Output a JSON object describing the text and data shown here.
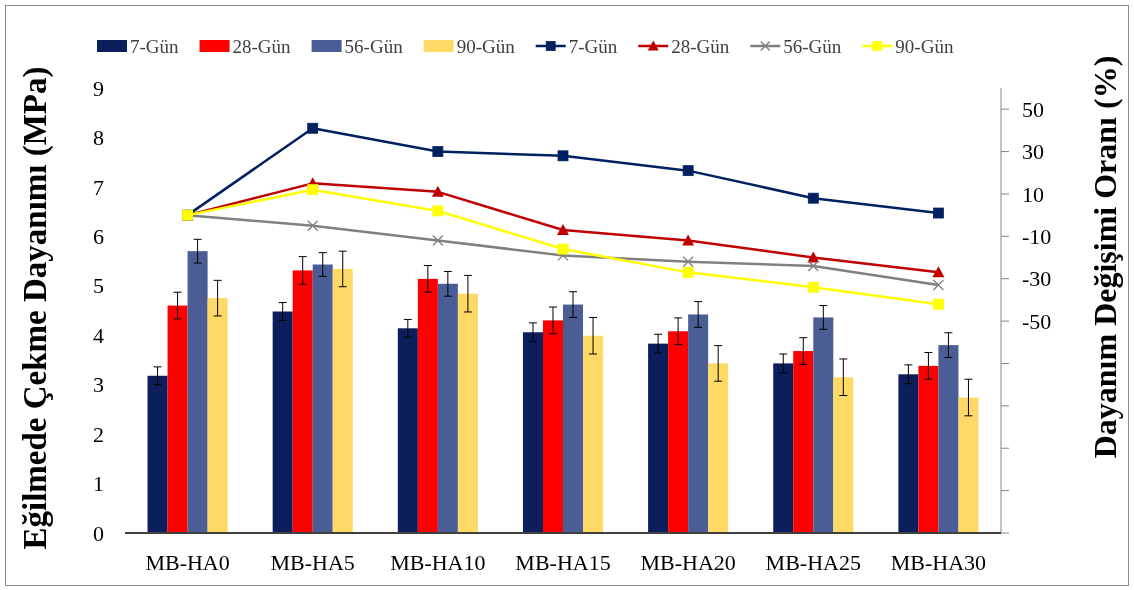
{
  "chart_data": {
    "type": "bar",
    "categories": [
      "MB-HA0",
      "MB-HA5",
      "MB-HA10",
      "MB-HA15",
      "MB-HA20",
      "MB-HA25",
      "MB-HA30"
    ],
    "ylabel": "Eğilmede Çekme Dayanımı (MPa)",
    "y2label": "Dayanım Değişimi Oranı (%)",
    "ylim": [
      0,
      9
    ],
    "yticks": [
      0,
      1,
      2,
      3,
      4,
      5,
      6,
      7,
      8,
      9
    ],
    "y2lim": [
      -150,
      60
    ],
    "y2ticks": [
      {
        "value": -150,
        "label": null
      },
      {
        "value": -130,
        "label": null
      },
      {
        "value": -110,
        "label": null
      },
      {
        "value": -90,
        "label": null
      },
      {
        "value": -70,
        "label": null
      },
      -50,
      -30,
      -10,
      10,
      30,
      50
    ],
    "legend": "top",
    "series": [
      {
        "name": "7-Gün",
        "color": "#0c1f5c",
        "values": [
          3.18,
          4.48,
          4.14,
          4.06,
          3.83,
          3.43,
          3.21
        ],
        "errors": [
          0.18,
          0.18,
          0.18,
          0.19,
          0.19,
          0.19,
          0.19
        ]
      },
      {
        "name": "28-Gün",
        "color": "#ff0000",
        "values": [
          4.6,
          5.31,
          5.14,
          4.3,
          4.08,
          3.68,
          3.38
        ],
        "errors": [
          0.27,
          0.28,
          0.27,
          0.27,
          0.27,
          0.27,
          0.27
        ]
      },
      {
        "name": "56-Gün",
        "color": "#4a5d94",
        "values": [
          5.7,
          5.43,
          5.04,
          4.62,
          4.42,
          4.36,
          3.8
        ],
        "errors": [
          0.24,
          0.24,
          0.25,
          0.26,
          0.26,
          0.24,
          0.25
        ]
      },
      {
        "name": "90-Gün",
        "color": "#ffd966",
        "values": [
          4.75,
          5.34,
          4.84,
          3.99,
          3.43,
          3.15,
          2.74
        ],
        "errors": [
          0.36,
          0.36,
          0.37,
          0.37,
          0.36,
          0.37,
          0.37
        ]
      },
      {
        "name": "7-Gün",
        "type": "line",
        "axis": "y2",
        "color": "#002060",
        "marker": "square",
        "values": [
          0,
          41,
          30,
          28,
          21,
          8,
          1
        ]
      },
      {
        "name": "28-Gün",
        "type": "line",
        "axis": "y2",
        "color": "#c00000",
        "marker": "triangle",
        "values": [
          0,
          15,
          11,
          -7,
          -12,
          -20,
          -27
        ]
      },
      {
        "name": "56-Gün",
        "type": "line",
        "axis": "y2",
        "color": "#808080",
        "marker": "cross",
        "values": [
          0,
          -5,
          -12,
          -19,
          -22,
          -24,
          -33
        ]
      },
      {
        "name": "90-Gün",
        "type": "line",
        "axis": "y2",
        "color": "#ffff00",
        "marker": "square",
        "values": [
          0,
          12,
          2,
          -16,
          -27,
          -34,
          -42
        ]
      }
    ]
  }
}
